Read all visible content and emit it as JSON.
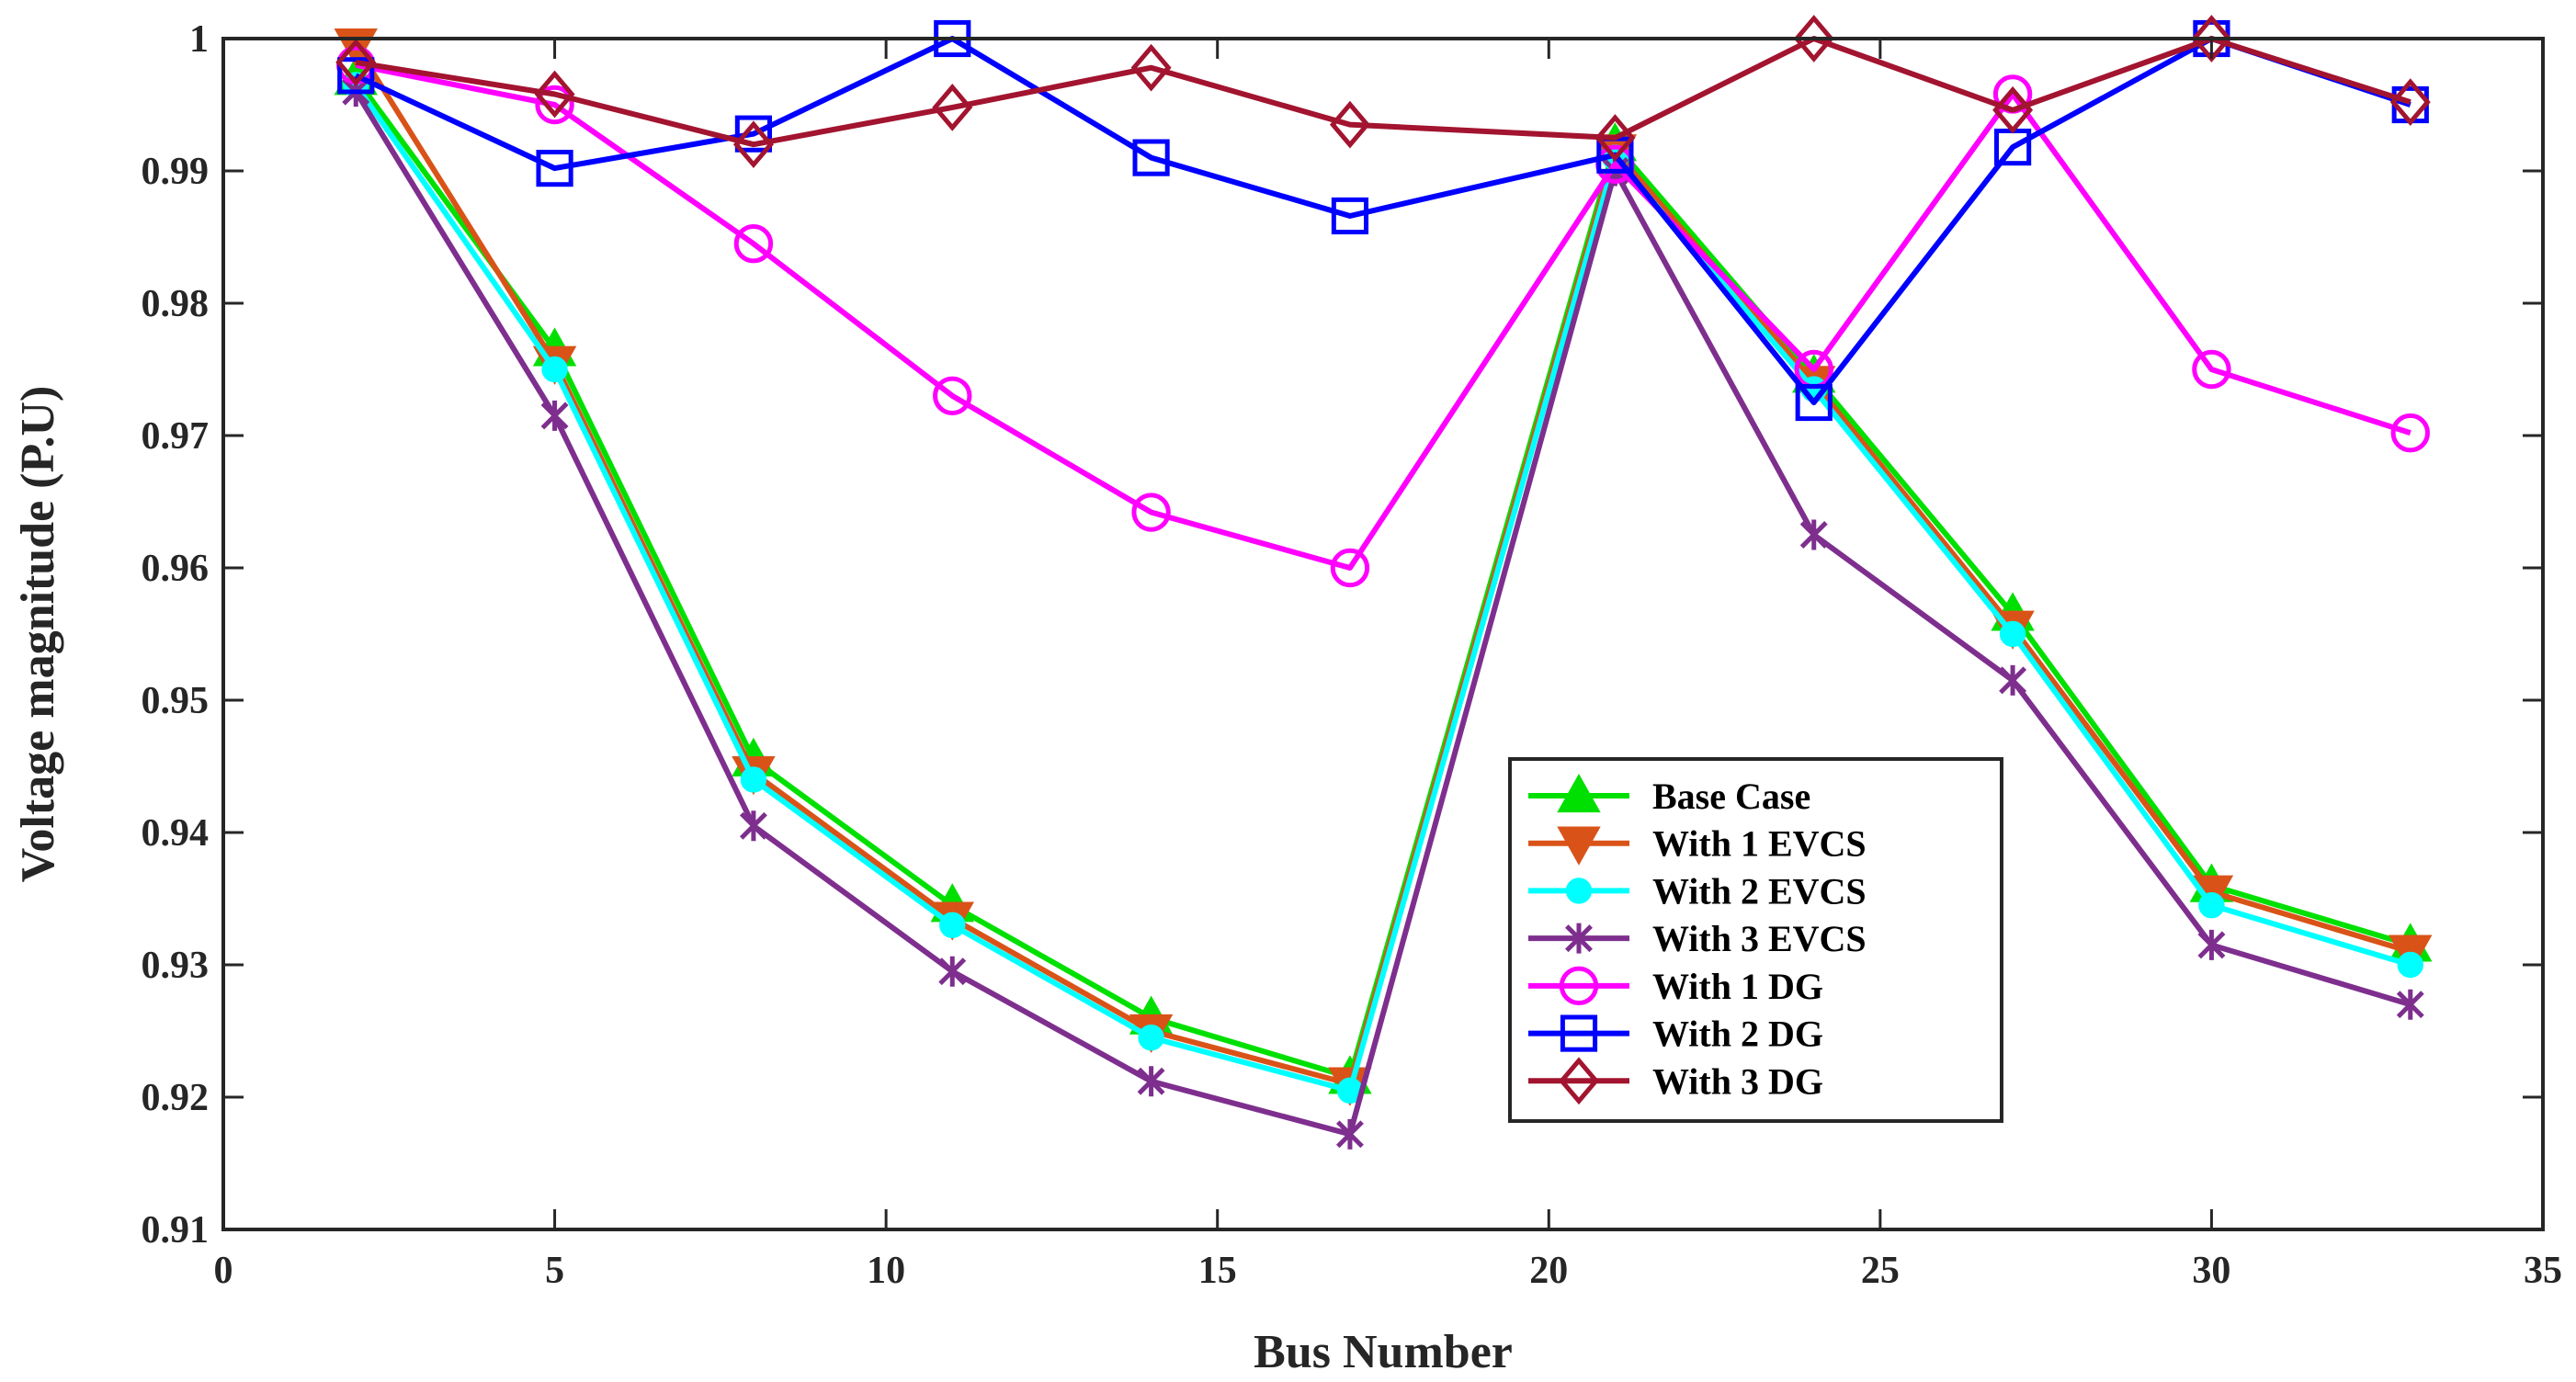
{
  "chart_data": {
    "type": "line",
    "title": "",
    "xlabel": "Bus Number",
    "ylabel": "Voltage magnitude (P.U)",
    "xlim": [
      0,
      35
    ],
    "ylim": [
      0.91,
      1.0
    ],
    "xticks": [
      0,
      5,
      10,
      15,
      20,
      25,
      30,
      35
    ],
    "yticks": [
      0.91,
      0.92,
      0.93,
      0.94,
      0.95,
      0.96,
      0.97,
      0.98,
      0.99,
      1.0
    ],
    "xtick_labels": [
      "0",
      "5",
      "10",
      "15",
      "20",
      "25",
      "30",
      "35"
    ],
    "ytick_labels": [
      "0.91",
      "0.92",
      "0.93",
      "0.94",
      "0.95",
      "0.96",
      "0.97",
      "0.98",
      "0.99",
      "1"
    ],
    "grid": false,
    "legend_position": "bottom-right-inside",
    "x": [
      2,
      5,
      8,
      11,
      14,
      17,
      21,
      24,
      27,
      30,
      33
    ],
    "series": [
      {
        "name": "Base Case",
        "color": "#00e000",
        "marker": "triangle-up",
        "values": [
          0.997,
          0.9765,
          0.9455,
          0.9345,
          0.926,
          0.9215,
          0.992,
          0.9745,
          0.9565,
          0.936,
          0.9315
        ]
      },
      {
        "name": "With 1 EVCS",
        "color": "#d95319",
        "marker": "triangle-down",
        "values": [
          0.9995,
          0.9755,
          0.9445,
          0.9335,
          0.925,
          0.921,
          0.9915,
          0.974,
          0.9555,
          0.9355,
          0.931
        ]
      },
      {
        "name": "With 2 EVCS",
        "color": "#00ffff",
        "marker": "circle-filled",
        "values": [
          0.9965,
          0.975,
          0.944,
          0.933,
          0.9245,
          0.9205,
          0.991,
          0.9735,
          0.955,
          0.9345,
          0.93
        ]
      },
      {
        "name": "With 3 EVCS",
        "color": "#7e2f8e",
        "marker": "star",
        "values": [
          0.996,
          0.9715,
          0.9405,
          0.9295,
          0.9212,
          0.9172,
          0.99,
          0.9625,
          0.9515,
          0.9315,
          0.927
        ]
      },
      {
        "name": "With 1 DG",
        "color": "#ff00ff",
        "marker": "circle-open",
        "values": [
          0.998,
          0.995,
          0.9845,
          0.973,
          0.9642,
          0.96,
          0.9905,
          0.975,
          0.9958,
          0.975,
          0.9702
        ]
      },
      {
        "name": "With 2 DG",
        "color": "#0000ff",
        "marker": "square-open",
        "values": [
          0.9972,
          0.9902,
          0.9928,
          1.0,
          0.991,
          0.9866,
          0.9912,
          0.9725,
          0.9918,
          1.0,
          0.995
        ]
      },
      {
        "name": "With 3 DG",
        "color": "#a2142f",
        "marker": "diamond-open",
        "values": [
          0.9982,
          0.9958,
          0.992,
          0.9948,
          0.9978,
          0.9935,
          0.9925,
          1.0,
          0.9946,
          1.0,
          0.9952
        ]
      }
    ]
  }
}
